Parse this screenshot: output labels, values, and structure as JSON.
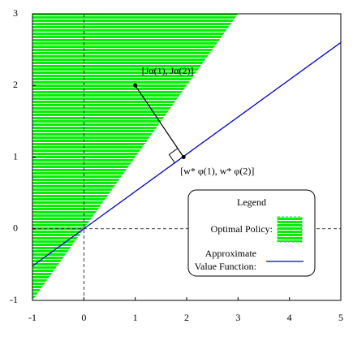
{
  "chart_data": {
    "type": "region",
    "xlim": [
      -1,
      5
    ],
    "ylim": [
      -1,
      3
    ],
    "xticks": [
      -1,
      0,
      1,
      2,
      3,
      4,
      5
    ],
    "yticks": [
      -1,
      0,
      1,
      2,
      3
    ],
    "region": {
      "name": "Optimal Policy:",
      "color": "#00ee00",
      "x": [
        -1,
        3,
        -1
      ],
      "values": [
        -1,
        3,
        3
      ]
    },
    "series": [
      {
        "name": [
          "Approximate",
          "Value Function:"
        ],
        "color": "#0000cc",
        "x": [
          -1,
          5
        ],
        "values": [
          -0.52,
          2.6
        ]
      }
    ],
    "points": {
      "x": [
        1,
        1.94
      ],
      "values": [
        2,
        1.0
      ],
      "labels": [
        "[Jα(1), Jα(2)]",
        "[w* φ(1), w* φ(2)]"
      ]
    },
    "legend_title": "Legend"
  }
}
